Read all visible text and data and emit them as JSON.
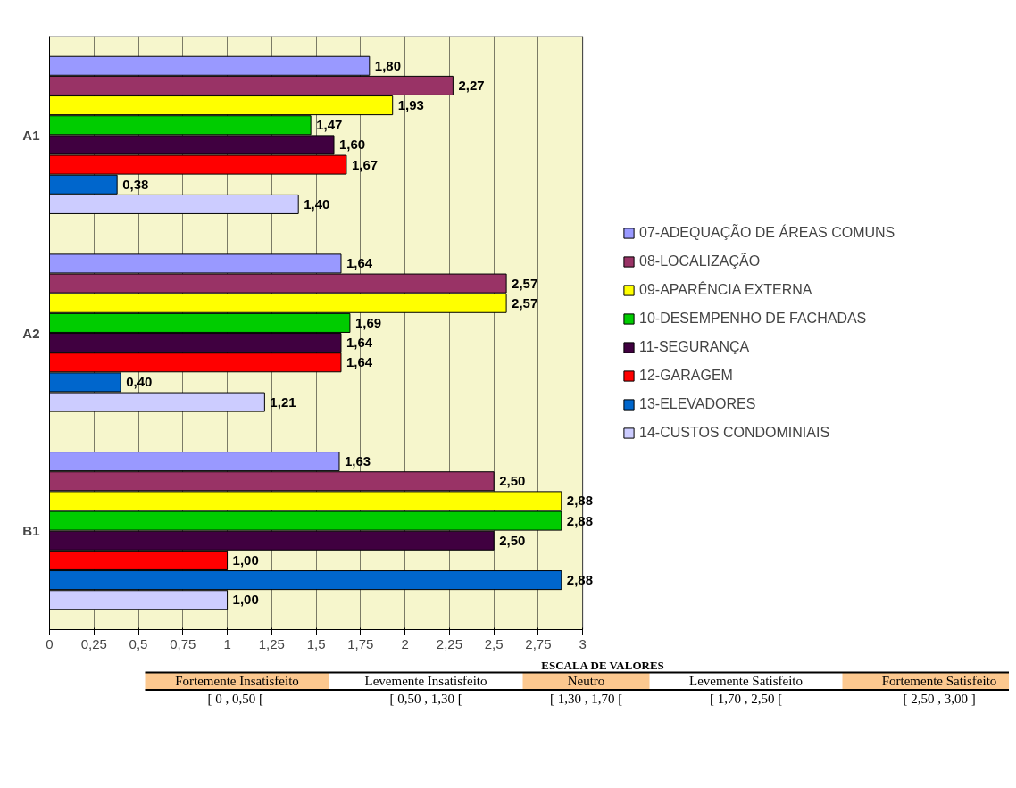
{
  "chart_data": {
    "type": "bar",
    "orientation": "horizontal",
    "categories": [
      "A1",
      "A2",
      "B1"
    ],
    "series": [
      {
        "name": "07-ADEQUAÇÃO DE ÁREAS COMUNS",
        "color": "#9999ff",
        "values": [
          1.8,
          1.64,
          1.63
        ],
        "value_labels": [
          "1,80",
          "1,64",
          "1,63"
        ]
      },
      {
        "name": "08-LOCALIZAÇÃO",
        "color": "#993366",
        "values": [
          2.27,
          2.57,
          2.5
        ],
        "value_labels": [
          "2,27",
          "2,57",
          "2,50"
        ]
      },
      {
        "name": "09-APARÊNCIA EXTERNA",
        "color": "#ffff00",
        "values": [
          1.93,
          2.57,
          2.88
        ],
        "value_labels": [
          "1,93",
          "2,57",
          "2,88"
        ]
      },
      {
        "name": "10-DESEMPENHO DE FACHADAS",
        "color": "#00cc00",
        "values": [
          1.47,
          1.69,
          2.88
        ],
        "value_labels": [
          "1,47",
          "1,69",
          "2,88"
        ]
      },
      {
        "name": "11-SEGURANÇA",
        "color": "#400040",
        "values": [
          1.6,
          1.64,
          2.5
        ],
        "value_labels": [
          "1,60",
          "1,64",
          "2,50"
        ]
      },
      {
        "name": "12-GARAGEM",
        "color": "#ff0000",
        "values": [
          1.67,
          1.64,
          1.0
        ],
        "value_labels": [
          "1,67",
          "1,64",
          "1,00"
        ]
      },
      {
        "name": "13-ELEVADORES",
        "color": "#0066cc",
        "values": [
          0.38,
          0.4,
          2.88
        ],
        "value_labels": [
          "0,38",
          "0,40",
          "2,88"
        ]
      },
      {
        "name": "14-CUSTOS CONDOMINIAIS",
        "color": "#ccccff",
        "values": [
          1.4,
          1.21,
          1.0
        ],
        "value_labels": [
          "1,40",
          "1,21",
          "1,00"
        ]
      }
    ],
    "xlim": [
      0,
      3
    ],
    "xticks": [
      0,
      {
        "value": 0.25,
        "label": "0,25"
      },
      {
        "value": 0.5,
        "label": "0,5"
      },
      {
        "value": 0.75,
        "label": "0,75"
      },
      1,
      {
        "value": 1.25,
        "label": "1,25"
      },
      {
        "value": 1.5,
        "label": "1,5"
      },
      {
        "value": 1.75,
        "label": "1,75"
      },
      2,
      {
        "value": 2.25,
        "label": "2,25"
      },
      {
        "value": 2.5,
        "label": "2,5"
      },
      {
        "value": 2.75,
        "label": "2,75"
      },
      3
    ],
    "grid": "x",
    "legend": "right",
    "annotations": [
      "ESCALA DE VALORES",
      "Fortemente Insatisfeito",
      "[ 0  , 0,50 [",
      "Levemente Insatisfeito",
      "[ 0,50 , 1,30 [",
      "Neutro",
      "[ 1,30 , 1,70 [",
      "Levemente Satisfeito",
      "[ 1,70 , 2,50 [",
      "Fortemente Satisfeito",
      "[ 2,50 , 3,00 ]"
    ]
  }
}
